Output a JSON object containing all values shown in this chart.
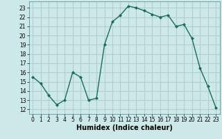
{
  "x": [
    0,
    1,
    2,
    3,
    4,
    5,
    6,
    7,
    8,
    9,
    10,
    11,
    12,
    13,
    14,
    15,
    16,
    17,
    18,
    19,
    20,
    21,
    22,
    23
  ],
  "y": [
    15.5,
    14.8,
    13.5,
    12.5,
    13.0,
    16.0,
    15.5,
    13.0,
    13.2,
    19.0,
    21.5,
    22.2,
    23.2,
    23.0,
    22.7,
    22.3,
    22.0,
    22.2,
    21.0,
    21.2,
    19.7,
    16.5,
    14.5,
    12.2
  ],
  "line_color": "#1a6b5a",
  "marker": "D",
  "marker_size": 2,
  "linewidth": 1.0,
  "xlabel": "Humidex (Indice chaleur)",
  "xlabel_fontsize": 7,
  "ylim": [
    11.5,
    23.7
  ],
  "xlim": [
    -0.5,
    23.5
  ],
  "yticks": [
    12,
    13,
    14,
    15,
    16,
    17,
    18,
    19,
    20,
    21,
    22,
    23
  ],
  "xticks": [
    0,
    1,
    2,
    3,
    4,
    5,
    6,
    7,
    8,
    9,
    10,
    11,
    12,
    13,
    14,
    15,
    16,
    17,
    18,
    19,
    20,
    21,
    22,
    23
  ],
  "bg_color": "#cce8e8",
  "grid_color": "#b0d0d0",
  "tick_fontsize": 5.5
}
